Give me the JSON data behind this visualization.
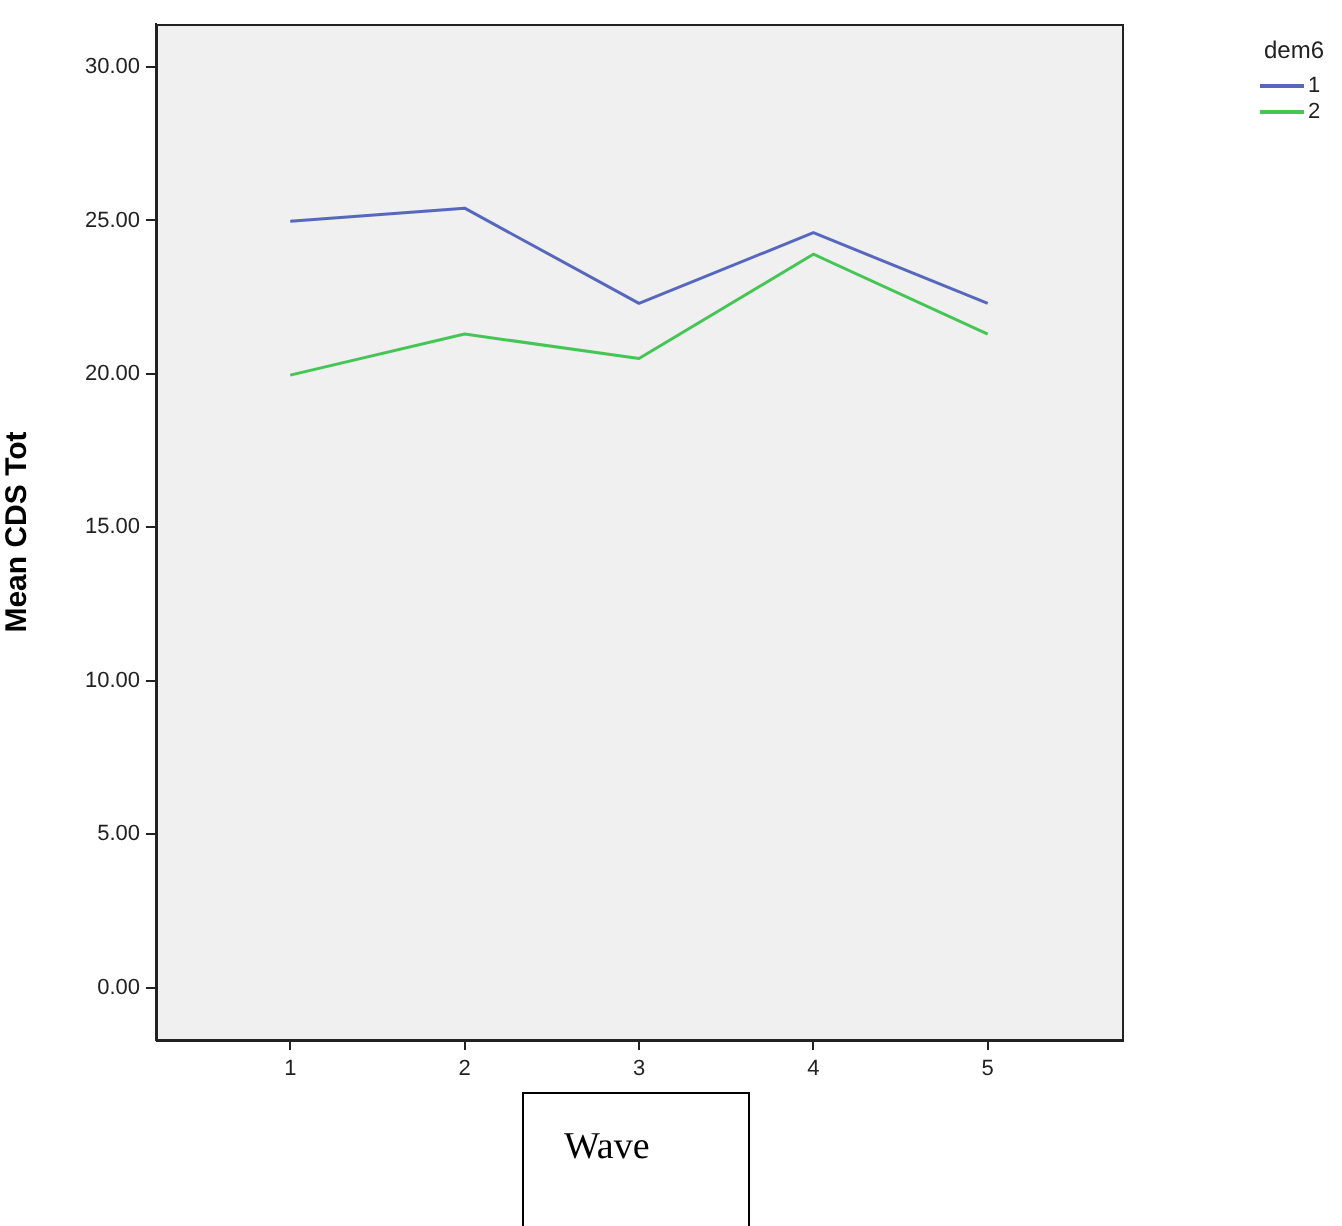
{
  "chart_data": {
    "type": "line",
    "xlabel": "Wave",
    "ylabel": "Mean CDS Tot",
    "legend_title": "dem6",
    "x": [
      1,
      2,
      3,
      4,
      5
    ],
    "series": [
      {
        "name": "1",
        "color": "#5667bd",
        "values": [
          24.97,
          25.4,
          22.3,
          24.6,
          22.3
        ]
      },
      {
        "name": "2",
        "color": "#45c555",
        "values": [
          19.96,
          21.3,
          20.5,
          23.9,
          21.3
        ]
      }
    ],
    "xlim": [
      0.23,
      5.77
    ],
    "xticks": [
      1,
      2,
      3,
      4,
      5
    ],
    "ylim": [
      -1.7,
      31.4
    ],
    "yticks": [
      {
        "value": 0,
        "label": "0.00"
      },
      {
        "value": 5,
        "label": "5.00"
      },
      {
        "value": 10,
        "label": "10.00"
      },
      {
        "value": 15,
        "label": "15.00"
      },
      {
        "value": 20,
        "label": "20.00"
      },
      {
        "value": 25,
        "label": "25.00"
      },
      {
        "value": 30,
        "label": "30.00"
      }
    ],
    "grid": false,
    "legend": "top right",
    "marker": "none",
    "line_style": "solid"
  }
}
